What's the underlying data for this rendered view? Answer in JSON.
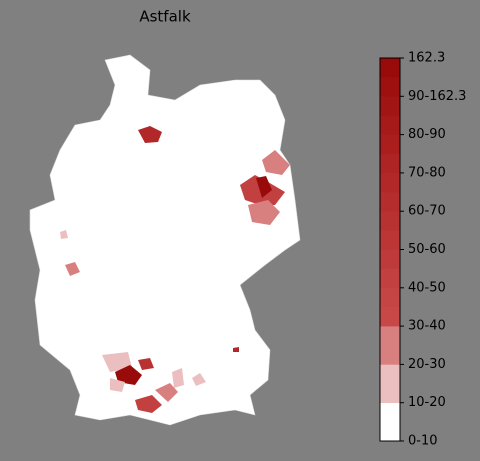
{
  "title": "Astfalk",
  "colorbar": {
    "labels": [
      "0-10",
      "10-20",
      "20-30",
      "30-40",
      "40-50",
      "50-60",
      "60-70",
      "70-80",
      "80-90",
      "90-162.3",
      "162.3"
    ],
    "colors": [
      "#ffffff",
      "#ffffff",
      "#ebbfbf",
      "#ebbfbf",
      "#d88080",
      "#d88080",
      "#c84848",
      "#c54444",
      "#c24040",
      "#bf3b3b",
      "#bc3636",
      "#b93232",
      "#b52d2d",
      "#b22828",
      "#ae2323",
      "#aa1e1e",
      "#a61a1a",
      "#a21515",
      "#9e1010",
      "#990b0b"
    ]
  }
}
